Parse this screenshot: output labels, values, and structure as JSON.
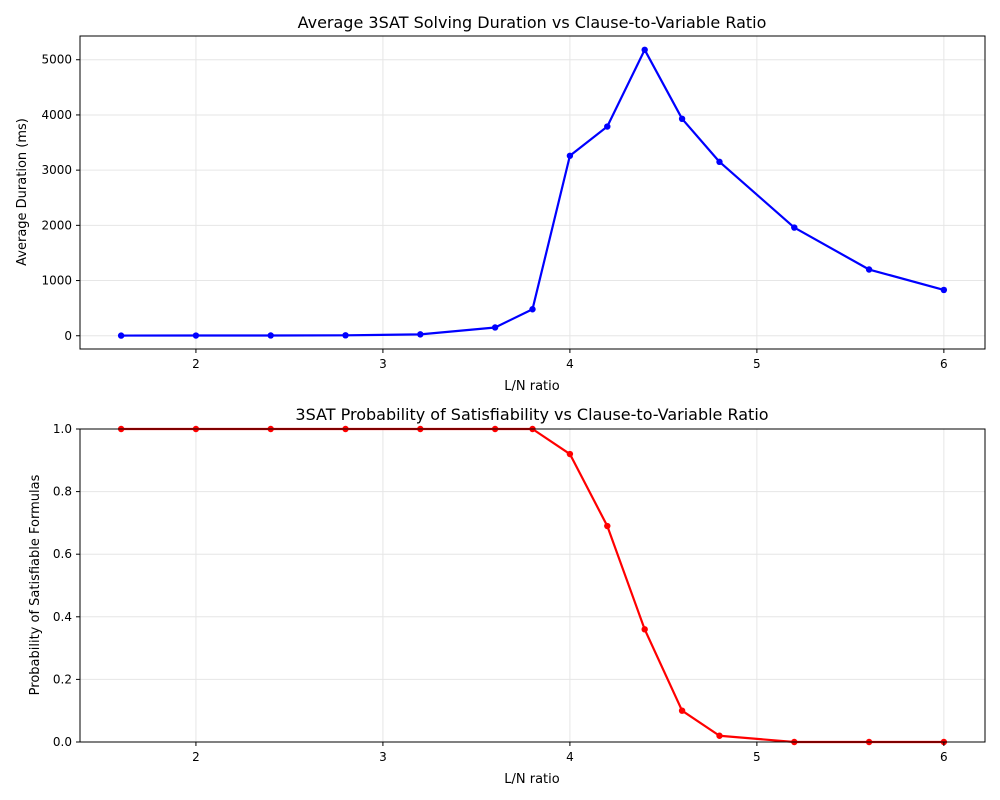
{
  "chart_data": [
    {
      "type": "line",
      "title": "Average 3SAT Solving Duration vs Clause-to-Variable Ratio",
      "xlabel": "L/N ratio",
      "ylabel": "Average Duration (ms)",
      "x": [
        1.6,
        2.0,
        2.4,
        2.8,
        3.2,
        3.6,
        3.8,
        4.0,
        4.2,
        4.4,
        4.6,
        4.8,
        5.2,
        5.6,
        6.0
      ],
      "series": [
        {
          "values": [
            3,
            4,
            5,
            8,
            25,
            150,
            480,
            3260,
            3790,
            5180,
            3930,
            3150,
            1960,
            1200,
            830
          ],
          "color": "#0000ff"
        }
      ],
      "xlim": [
        1.38,
        6.22
      ],
      "ylim": [
        -240,
        5430
      ],
      "xticks": [
        2,
        3,
        4,
        5,
        6
      ],
      "yticks": [
        0,
        1000,
        2000,
        3000,
        4000,
        5000
      ],
      "grid": true
    },
    {
      "type": "line",
      "title": "3SAT Probability of Satisfiability vs Clause-to-Variable Ratio",
      "xlabel": "L/N ratio",
      "ylabel": "Probability of Satisfiable Formulas",
      "x": [
        1.6,
        2.0,
        2.4,
        2.8,
        3.2,
        3.6,
        3.8,
        4.0,
        4.2,
        4.4,
        4.6,
        4.8,
        5.2,
        5.6,
        6.0
      ],
      "series": [
        {
          "values": [
            1.0,
            1.0,
            1.0,
            1.0,
            1.0,
            1.0,
            1.0,
            0.92,
            0.69,
            0.36,
            0.1,
            0.02,
            0.0,
            0.0,
            0.0
          ],
          "color": "#ff0000"
        }
      ],
      "xlim": [
        1.38,
        6.22
      ],
      "ylim": [
        0,
        1.0
      ],
      "xticks": [
        2,
        3,
        4,
        5,
        6
      ],
      "yticks": [
        0.0,
        0.2,
        0.4,
        0.6,
        0.8,
        1.0
      ],
      "ytick_labels": [
        "0.0",
        "0.2",
        "0.4",
        "0.6",
        "0.8",
        "1.0"
      ],
      "grid": true
    }
  ]
}
